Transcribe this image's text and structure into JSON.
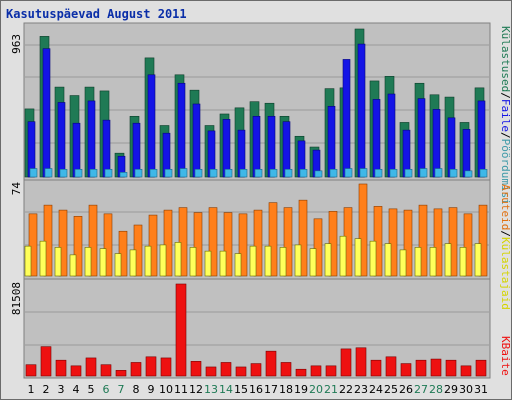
{
  "title": "Kasutuspäevad August 2011",
  "colors": {
    "visits": "#1f7a55",
    "pages": "#1414e6",
    "hits": "#3fb8e8",
    "unique": "#ffff5a",
    "bandwidth": "#ff7f1a",
    "traffic": "#ee1111",
    "panel_bg": "#c0c0c0",
    "grid": "#9a9a9a",
    "weekend": "#1f7a55",
    "weekday": "#000000"
  },
  "legend": {
    "right_top": [
      "Külastused",
      "/",
      "Faile",
      "/",
      "Pöördumisi"
    ],
    "right_mid": [
      "Aruteid",
      "/",
      "Külastajaid"
    ],
    "right_bot": [
      "KBaite"
    ]
  },
  "chart_data": [
    {
      "type": "bar",
      "panel": "top",
      "ymax_label": "963",
      "ylim": [
        0,
        963
      ],
      "categories": [
        "1",
        "2",
        "3",
        "4",
        "5",
        "6",
        "7",
        "8",
        "9",
        "10",
        "11",
        "12",
        "13",
        "14",
        "15",
        "16",
        "17",
        "18",
        "19",
        "20",
        "21",
        "22",
        "23",
        "24",
        "25",
        "26",
        "27",
        "28",
        "29",
        "30",
        "31"
      ],
      "series": [
        {
          "name": "Külastused",
          "values": [
            443,
            915,
            585,
            530,
            585,
            560,
            155,
            395,
            775,
            335,
            665,
            565,
            335,
            410,
            450,
            490,
            480,
            395,
            265,
            195,
            575,
            580,
            963,
            625,
            655,
            355,
            610,
            535,
            520,
            355,
            580
          ]
        },
        {
          "name": "Faile",
          "values": [
            360,
            835,
            485,
            350,
            495,
            370,
            135,
            350,
            665,
            285,
            610,
            475,
            300,
            375,
            305,
            395,
            395,
            360,
            235,
            175,
            460,
            765,
            865,
            505,
            540,
            305,
            510,
            440,
            385,
            310,
            495
          ]
        },
        {
          "name": "Pöördumisi",
          "values": [
            55,
            55,
            50,
            50,
            50,
            50,
            30,
            50,
            50,
            50,
            55,
            50,
            50,
            50,
            50,
            50,
            50,
            50,
            50,
            40,
            50,
            55,
            55,
            50,
            50,
            50,
            55,
            55,
            50,
            40,
            50
          ]
        }
      ]
    },
    {
      "type": "bar",
      "panel": "middle",
      "ymax_label": "74",
      "ylim": [
        0,
        74
      ],
      "categories": [
        "1",
        "2",
        "3",
        "4",
        "5",
        "6",
        "7",
        "8",
        "9",
        "10",
        "11",
        "12",
        "13",
        "14",
        "15",
        "16",
        "17",
        "18",
        "19",
        "20",
        "21",
        "22",
        "23",
        "24",
        "25",
        "26",
        "27",
        "28",
        "29",
        "30",
        "31"
      ],
      "series": [
        {
          "name": "Aruteid",
          "values": [
            50,
            57,
            53,
            48,
            57,
            50,
            36,
            41,
            49,
            53,
            55,
            51,
            55,
            51,
            50,
            53,
            59,
            55,
            61,
            46,
            52,
            55,
            74,
            56,
            54,
            53,
            57,
            54,
            55,
            50,
            57
          ]
        },
        {
          "name": "Külastajaid",
          "values": [
            24,
            28,
            23,
            17,
            23,
            22,
            18,
            21,
            24,
            25,
            27,
            23,
            20,
            20,
            18,
            24,
            24,
            23,
            25,
            22,
            26,
            32,
            30,
            28,
            26,
            21,
            23,
            23,
            26,
            23,
            26
          ]
        }
      ]
    },
    {
      "type": "bar",
      "panel": "bottom",
      "ymax_label": "81508",
      "ylim": [
        0,
        81508
      ],
      "categories": [
        "1",
        "2",
        "3",
        "4",
        "5",
        "6",
        "7",
        "8",
        "9",
        "10",
        "11",
        "12",
        "13",
        "14",
        "15",
        "16",
        "17",
        "18",
        "19",
        "20",
        "21",
        "22",
        "23",
        "24",
        "25",
        "26",
        "27",
        "28",
        "29",
        "30",
        "31"
      ],
      "series": [
        {
          "name": "KBaite",
          "values": [
            10000,
            26000,
            14000,
            9000,
            16000,
            10000,
            5000,
            12000,
            17000,
            16000,
            81508,
            13000,
            8000,
            12000,
            8000,
            11000,
            22000,
            12000,
            6000,
            9000,
            9000,
            24000,
            25000,
            14000,
            17000,
            11000,
            14000,
            15000,
            14000,
            9000,
            14000
          ]
        }
      ]
    }
  ],
  "weekend_days": [
    6,
    7,
    13,
    14,
    20,
    21,
    27,
    28
  ]
}
